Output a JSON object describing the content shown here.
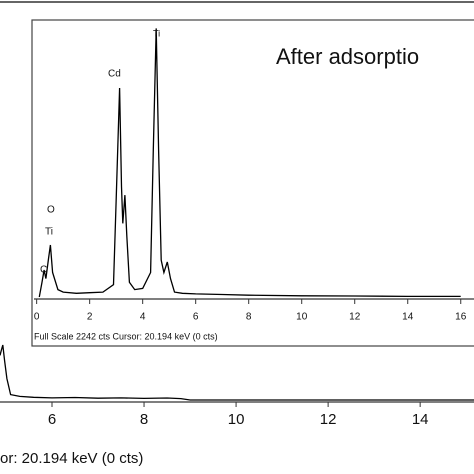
{
  "chart_data": [
    {
      "type": "line",
      "footer": "or: 20.194 keV (0 cts)",
      "xlim": [
        4.87,
        15.17
      ],
      "xticks": [
        6,
        8,
        10,
        12,
        14
      ],
      "ylim": [
        0,
        2242
      ],
      "color": "#000000",
      "x": [
        4.87,
        4.9,
        4.93,
        4.97,
        5.02,
        5.1,
        5.3,
        5.6,
        6.0,
        6.5,
        7.0,
        7.5,
        8.0,
        8.5,
        8.8,
        9.0,
        10,
        12,
        14,
        15.17
      ],
      "values": [
        250,
        280,
        308,
        220,
        120,
        30,
        20,
        15,
        12,
        14,
        10,
        12,
        9,
        11,
        8,
        0,
        0,
        0,
        0,
        0
      ]
    },
    {
      "type": "line",
      "annotation": "After adsorptio",
      "footer": "Full Scale 2242 cts  Cursor: 20.194 keV (0 cts)",
      "peak_labels": [
        "O",
        "Ti",
        "C",
        "Cd",
        "Ti"
      ],
      "xlim": [
        -0.1,
        16.5
      ],
      "xticks": [
        0,
        2,
        4,
        6,
        8,
        10,
        12,
        14,
        16
      ],
      "ylim": [
        0,
        2242
      ],
      "color": "#000000",
      "x": [
        0.1,
        0.2,
        0.28,
        0.35,
        0.45,
        0.52,
        0.6,
        0.8,
        1.0,
        1.5,
        2.0,
        2.5,
        2.9,
        3.0,
        3.13,
        3.2,
        3.25,
        3.33,
        3.4,
        3.5,
        3.7,
        4.0,
        4.3,
        4.4,
        4.51,
        4.6,
        4.7,
        4.8,
        4.93,
        5.05,
        5.2,
        5.5,
        6,
        7,
        8,
        10,
        12,
        14,
        16
      ],
      "values": [
        0,
        120,
        220,
        150,
        318,
        424,
        200,
        60,
        40,
        30,
        35,
        40,
        100,
        800,
        1704,
        900,
        600,
        831,
        500,
        120,
        60,
        70,
        200,
        1200,
        2190,
        1200,
        300,
        200,
        285,
        150,
        40,
        30,
        25,
        20,
        15,
        10,
        8,
        5,
        5
      ]
    }
  ]
}
